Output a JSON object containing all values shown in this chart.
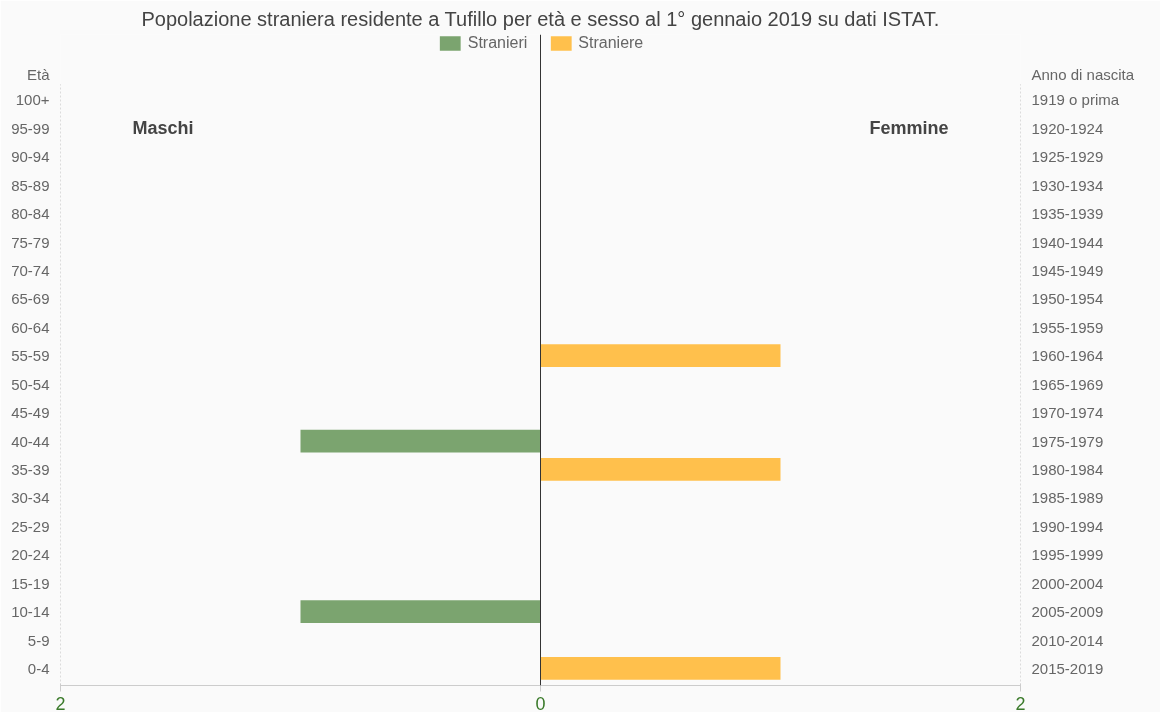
{
  "chart_data": {
    "type": "bar",
    "orientation": "horizontal",
    "title": "Popolazione straniera residente a Tufillo per età e sesso al 1° gennaio 2019 su dati ISTAT.",
    "ylabel": "Età",
    "y2label": "Anno di nascita",
    "categories": [
      "100+",
      "95-99",
      "90-94",
      "85-89",
      "80-84",
      "75-79",
      "70-74",
      "65-69",
      "60-64",
      "55-59",
      "50-54",
      "45-49",
      "40-44",
      "35-39",
      "30-34",
      "25-29",
      "20-24",
      "15-19",
      "10-14",
      "5-9",
      "0-4"
    ],
    "y2_categories": [
      "1919 o prima",
      "1920-1924",
      "1925-1929",
      "1930-1934",
      "1935-1939",
      "1940-1944",
      "1945-1949",
      "1950-1954",
      "1955-1959",
      "1960-1964",
      "1965-1969",
      "1970-1974",
      "1975-1979",
      "1980-1984",
      "1985-1989",
      "1990-1994",
      "1995-1999",
      "2000-2004",
      "2005-2009",
      "2010-2014",
      "2015-2019"
    ],
    "series": [
      {
        "name": "Stranieri",
        "color": "#7ba46f",
        "values": [
          0,
          0,
          0,
          0,
          0,
          0,
          0,
          0,
          0,
          0,
          0,
          0,
          -1,
          0,
          0,
          0,
          0,
          0,
          -1,
          0,
          0
        ]
      },
      {
        "name": "Straniere",
        "color": "#ffc04c",
        "values": [
          0,
          0,
          0,
          0,
          0,
          0,
          0,
          0,
          0,
          1,
          0,
          0,
          0,
          1,
          0,
          0,
          0,
          0,
          0,
          0,
          1
        ]
      }
    ],
    "xlim": [
      -2,
      2
    ],
    "xticks": [
      {
        "value": -2,
        "label": "2"
      },
      0,
      2
    ],
    "annotations": [
      "Maschi",
      "Femmine"
    ],
    "legend": "top",
    "grid": "x"
  }
}
